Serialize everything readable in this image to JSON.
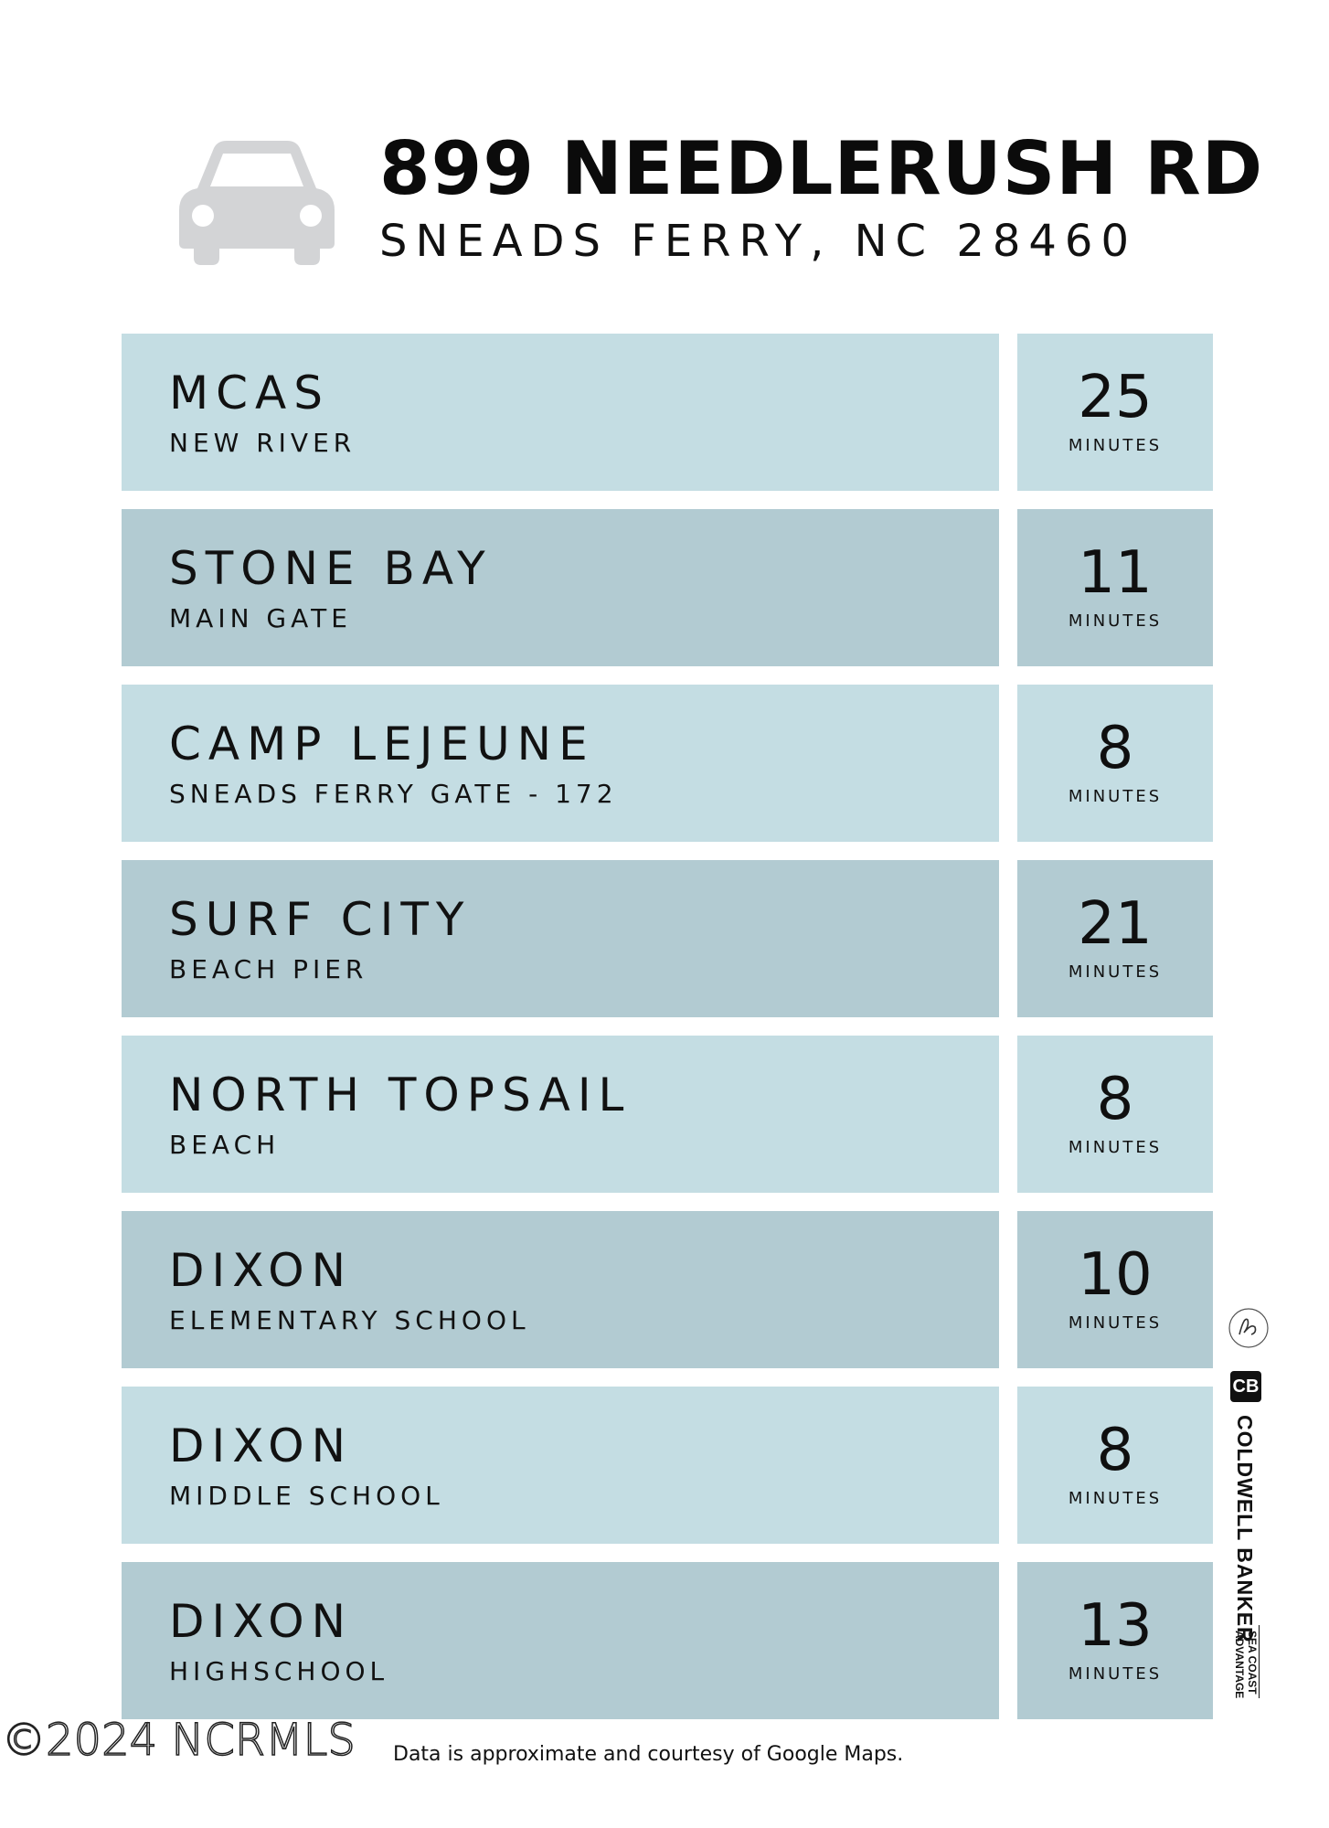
{
  "header": {
    "icon": "car-icon",
    "title": "899 NEEDLERUSH RD",
    "subtitle": "SNEADS FERRY, NC 28460"
  },
  "destinations": [
    {
      "place": "MCAS",
      "detail": "NEW RIVER",
      "minutes": "25",
      "unit": "MINUTES"
    },
    {
      "place": "STONE BAY",
      "detail": "MAIN GATE",
      "minutes": "11",
      "unit": "MINUTES"
    },
    {
      "place": "CAMP LEJEUNE",
      "detail": "SNEADS FERRY GATE - 172",
      "minutes": "8",
      "unit": "MINUTES"
    },
    {
      "place": "SURF CITY",
      "detail": "BEACH PIER",
      "minutes": "21",
      "unit": "MINUTES"
    },
    {
      "place": "NORTH TOPSAIL",
      "detail": "BEACH",
      "minutes": "8",
      "unit": "MINUTES"
    },
    {
      "place": "DIXON",
      "detail": "ELEMENTARY SCHOOL",
      "minutes": "10",
      "unit": "MINUTES"
    },
    {
      "place": "DIXON",
      "detail": "MIDDLE SCHOOL",
      "minutes": "8",
      "unit": "MINUTES"
    },
    {
      "place": "DIXON",
      "detail": "HIGHSCHOOL",
      "minutes": "13",
      "unit": "MINUTES"
    }
  ],
  "colors": {
    "row_light": "#c4dde3",
    "row_dark": "#b2cbd2",
    "icon_gray": "#d3d4d6"
  },
  "brand": {
    "logo": "CB",
    "name": "COLDWELL BANKER",
    "sub": "SEA COAST\nADVANTAGE"
  },
  "footer": {
    "copyright": "©2024 NCRMLS",
    "note": "Data is approximate and courtesy of Google Maps."
  }
}
